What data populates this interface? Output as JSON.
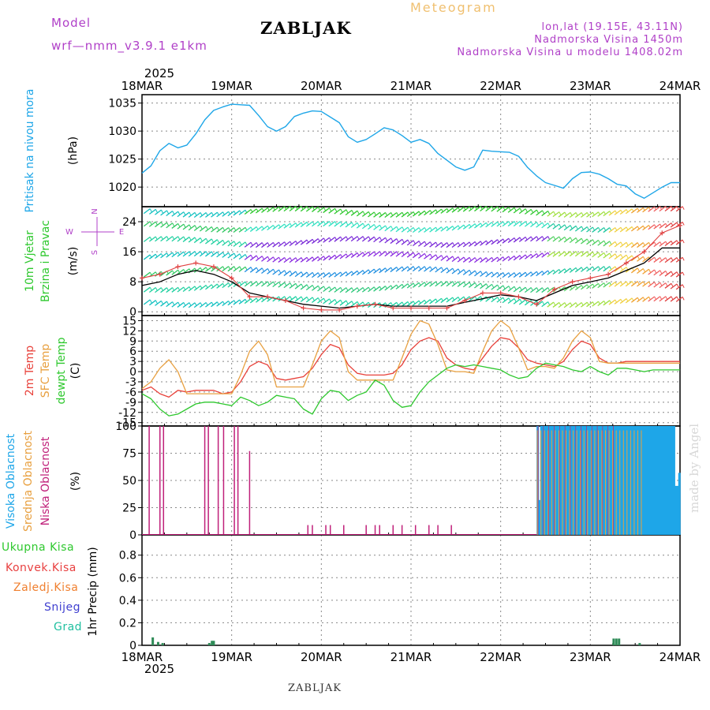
{
  "header": {
    "model_label": "Model",
    "model_name": "wrf—nmm_v3.9.1 e1km",
    "station": "ZABLJAK",
    "title": "Meteogram",
    "lonlat": "lon,lat (19.15E, 43.11N)",
    "elevation": "Nadmorska Visina 1450m",
    "model_elevation": "Nadmorska Visina u modelu 1408.02m",
    "footer_station": "ZABLJAK",
    "credit": "made by Angel"
  },
  "time_axis": {
    "year_top": "2025",
    "year_bottom": "2025",
    "ticks": [
      "18MAR",
      "19MAR",
      "20MAR",
      "21MAR",
      "22MAR",
      "23MAR",
      "24MAR"
    ]
  },
  "legend": {
    "wind_compass": "N\n<-|->\nW          E\n<-|->\nS"
  },
  "colors": {
    "pressure": "#1ea6e8",
    "temp2m": "#e8413a",
    "sfc_temp": "#e8a040",
    "dewpt": "#2ec82e",
    "high_cloud": "#1ea6e8",
    "mid_cloud": "#e8a040",
    "low_cloud": "#c0207a",
    "precip_total": "#2e8b57",
    "title_orange": "#f0c070",
    "purple": "#b040c8"
  },
  "chart_data": [
    {
      "type": "line",
      "id": "pressure",
      "ylabel_name": "Pritisak na nivou mora",
      "ylabel_unit": "(hPa)",
      "yticks": [
        1020,
        1025,
        1030,
        1035
      ],
      "ylim": [
        1016.5,
        1036.5
      ],
      "x_days": [
        0,
        0.1,
        0.2,
        0.3,
        0.4,
        0.5,
        0.6,
        0.7,
        0.8,
        0.9,
        1.0,
        1.1,
        1.2,
        1.3,
        1.4,
        1.5,
        1.6,
        1.7,
        1.8,
        1.9,
        2.0,
        2.1,
        2.2,
        2.3,
        2.4,
        2.5,
        2.6,
        2.7,
        2.8,
        2.9,
        3.0,
        3.1,
        3.2,
        3.3,
        3.4,
        3.5,
        3.6,
        3.7,
        3.8,
        3.9,
        4.0,
        4.1,
        4.2,
        4.3,
        4.4,
        4.5,
        4.6,
        4.7,
        4.8,
        4.9,
        5.0,
        5.1,
        5.2,
        5.3,
        5.4,
        5.5,
        5.6,
        5.7,
        5.8,
        5.9,
        6.0
      ],
      "values": [
        1022.5,
        1023.8,
        1026.5,
        1027.8,
        1027.0,
        1027.5,
        1029.5,
        1032.0,
        1033.7,
        1034.3,
        1034.8,
        1034.7,
        1034.6,
        1032.8,
        1030.8,
        1030.0,
        1030.8,
        1032.6,
        1033.2,
        1033.6,
        1033.5,
        1032.5,
        1031.5,
        1029.0,
        1028.0,
        1028.5,
        1029.5,
        1030.6,
        1030.2,
        1029.2,
        1028.0,
        1028.5,
        1027.8,
        1026.0,
        1024.8,
        1023.6,
        1023.0,
        1023.6,
        1026.6,
        1026.4,
        1026.3,
        1026.2,
        1025.5,
        1023.5,
        1022.0,
        1020.8,
        1020.3,
        1019.8,
        1021.5,
        1022.6,
        1022.7,
        1022.3,
        1021.5,
        1020.5,
        1020.2,
        1018.8,
        1018.0,
        1019.0,
        1020.0,
        1020.8,
        1020.8
      ]
    },
    {
      "type": "line",
      "id": "wind",
      "ylabel_name": "10m Vjetar Brzina i Pravac",
      "ylabel_unit": "(m/s)",
      "yticks": [
        0,
        8,
        16,
        24
      ],
      "ylim": [
        -1,
        28
      ],
      "series": [
        {
          "name": "speed",
          "x_days": [
            0,
            0.2,
            0.4,
            0.6,
            0.8,
            1.0,
            1.2,
            1.4,
            1.6,
            1.8,
            2.0,
            2.2,
            2.4,
            2.6,
            2.8,
            3.0,
            3.2,
            3.4,
            3.6,
            3.8,
            4.0,
            4.2,
            4.4,
            4.6,
            4.8,
            5.0,
            5.2,
            5.4,
            5.6,
            5.8,
            6.0
          ],
          "values": [
            7,
            8,
            10,
            11,
            10,
            8,
            5,
            4,
            3,
            2,
            1.5,
            1,
            1.5,
            2,
            1.5,
            1.5,
            1.5,
            1.5,
            2.5,
            3.5,
            4.5,
            4,
            3,
            5,
            7,
            8,
            9,
            11,
            13,
            17,
            17
          ]
        },
        {
          "name": "gust",
          "x_days": [
            0,
            0.2,
            0.4,
            0.6,
            0.8,
            1.0,
            1.2,
            1.4,
            1.6,
            1.8,
            2.0,
            2.2,
            2.4,
            2.6,
            2.8,
            3.0,
            3.2,
            3.4,
            3.6,
            3.8,
            4.0,
            4.2,
            4.4,
            4.6,
            4.8,
            5.0,
            5.2,
            5.4,
            5.6,
            5.8,
            6.0
          ],
          "values": [
            9,
            10,
            12,
            13,
            12,
            9,
            4,
            4,
            3,
            1,
            0.5,
            0.5,
            1.5,
            2,
            1,
            1,
            1,
            1,
            3,
            5,
            5,
            4,
            2,
            6,
            8,
            9,
            10,
            13,
            16,
            21,
            23
          ]
        }
      ]
    },
    {
      "type": "line",
      "id": "temperature",
      "ylabel_name_a": "2m Temp",
      "ylabel_name_b": "SFC Temp",
      "ylabel_name_c": "dewpt Temp",
      "ylabel_unit": "(C)",
      "yticks": [
        -15,
        -12,
        -9,
        -6,
        -3,
        0,
        3,
        6,
        9,
        12,
        15
      ],
      "ylim": [
        -16,
        16.5
      ],
      "x_days": [
        0,
        0.1,
        0.2,
        0.3,
        0.4,
        0.5,
        0.6,
        0.7,
        0.8,
        0.9,
        1.0,
        1.1,
        1.2,
        1.3,
        1.4,
        1.5,
        1.6,
        1.7,
        1.8,
        1.9,
        2.0,
        2.1,
        2.2,
        2.3,
        2.4,
        2.5,
        2.6,
        2.7,
        2.8,
        2.9,
        3.0,
        3.1,
        3.2,
        3.3,
        3.4,
        3.5,
        3.6,
        3.7,
        3.8,
        3.9,
        4.0,
        4.1,
        4.2,
        4.3,
        4.4,
        4.5,
        4.6,
        4.7,
        4.8,
        4.9,
        5.0,
        5.1,
        5.2,
        5.3,
        5.4,
        5.5,
        5.6,
        5.7,
        5.8,
        5.9,
        6.0
      ],
      "series": [
        {
          "name": "2m Temp",
          "values": [
            -5.5,
            -4.5,
            -6.5,
            -7.5,
            -5.5,
            -6.0,
            -5.5,
            -5.5,
            -5.5,
            -6.5,
            -6.0,
            -3.0,
            1.5,
            3.0,
            2.0,
            -2.0,
            -2.5,
            -2.0,
            -1.5,
            1.0,
            5.0,
            8.0,
            7.0,
            2.0,
            -0.5,
            -1.0,
            -1.0,
            -1.0,
            -0.5,
            2.0,
            6.5,
            9.0,
            10.0,
            9.0,
            4.0,
            2.0,
            1.0,
            0.5,
            4.0,
            7.5,
            10.0,
            9.5,
            7.0,
            3.5,
            2.5,
            2.0,
            1.5,
            3.0,
            6.5,
            9.0,
            8.0,
            4.0,
            2.5,
            2.5,
            3.0,
            3.0,
            3.0,
            3.0,
            3.0,
            3.0,
            3.0
          ]
        },
        {
          "name": "SFC Temp",
          "values": [
            -5.0,
            -3.0,
            1.0,
            3.5,
            0.0,
            -6.5,
            -6.5,
            -6.5,
            -6.5,
            -6.5,
            -6.5,
            -1.0,
            6.0,
            9.0,
            5.0,
            -4.5,
            -4.5,
            -4.5,
            -4.5,
            2.0,
            9.0,
            12.0,
            10.0,
            0.0,
            -2.5,
            -2.5,
            -2.5,
            -2.5,
            -2.5,
            4.0,
            11.0,
            15.0,
            14.0,
            8.0,
            0.5,
            0.0,
            0.0,
            -0.5,
            6.0,
            12.0,
            15.0,
            13.0,
            7.0,
            0.5,
            1.5,
            1.5,
            1.0,
            4.0,
            9.0,
            12.0,
            10.0,
            3.0,
            2.5,
            2.5,
            2.5,
            2.5,
            2.5,
            2.5,
            2.5,
            2.5,
            2.5
          ]
        },
        {
          "name": "dewpt Temp",
          "values": [
            -6.5,
            -8.0,
            -11.0,
            -13.0,
            -12.5,
            -11.0,
            -9.5,
            -9.0,
            -9.0,
            -9.5,
            -10.0,
            -7.5,
            -8.5,
            -10.0,
            -9.0,
            -7.0,
            -7.5,
            -8.0,
            -11.0,
            -12.5,
            -8.0,
            -5.5,
            -6.0,
            -8.5,
            -7.0,
            -6.0,
            -2.5,
            -4.0,
            -8.5,
            -10.5,
            -10.0,
            -6.0,
            -3.0,
            -1.0,
            1.0,
            2.0,
            1.5,
            2.0,
            1.5,
            1.0,
            0.5,
            -1.0,
            -2.0,
            -1.5,
            1.0,
            2.5,
            2.0,
            1.5,
            0.5,
            0.0,
            1.5,
            0.0,
            -1.0,
            1.0,
            1.0,
            0.5,
            0.0,
            0.5,
            0.5,
            0.5,
            0.5
          ]
        }
      ]
    },
    {
      "type": "bar",
      "id": "cloud",
      "ylabel_name_a": "Visoka Oblacnost",
      "ylabel_name_b": "Srednja Oblacnost",
      "ylabel_name_c": "Niska Oblacnost",
      "ylabel_unit": "(%)",
      "yticks": [
        0,
        25,
        50,
        75,
        100
      ],
      "ylim": [
        0,
        100
      ],
      "low_bars": [
        {
          "x": 0.08,
          "v": 100
        },
        {
          "x": 0.2,
          "v": 100
        },
        {
          "x": 0.24,
          "v": 100
        },
        {
          "x": 0.7,
          "v": 100
        },
        {
          "x": 0.74,
          "v": 100
        },
        {
          "x": 0.85,
          "v": 100
        },
        {
          "x": 0.91,
          "v": 100
        },
        {
          "x": 1.03,
          "v": 100
        },
        {
          "x": 1.07,
          "v": 100
        },
        {
          "x": 1.2,
          "v": 77
        },
        {
          "x": 1.85,
          "v": 9
        },
        {
          "x": 1.9,
          "v": 9
        },
        {
          "x": 2.05,
          "v": 9
        },
        {
          "x": 2.1,
          "v": 9
        },
        {
          "x": 2.25,
          "v": 9
        },
        {
          "x": 2.5,
          "v": 9
        },
        {
          "x": 2.6,
          "v": 9
        },
        {
          "x": 2.65,
          "v": 9
        },
        {
          "x": 2.8,
          "v": 9
        },
        {
          "x": 2.9,
          "v": 9
        },
        {
          "x": 3.05,
          "v": 9
        },
        {
          "x": 3.2,
          "v": 9
        },
        {
          "x": 3.3,
          "v": 9
        },
        {
          "x": 3.45,
          "v": 9
        }
      ],
      "high_from_day": 4.4,
      "high_to_day": 6.0,
      "high_low_values": [
        {
          "x": 4.42,
          "v": 32
        },
        {
          "x": 5.95,
          "v": 45
        },
        {
          "x": 5.98,
          "v": 57
        }
      ]
    },
    {
      "type": "bar",
      "id": "precip",
      "ylabel_name": "1hr Precip (mm)",
      "legend_entries": [
        "Ukupna Kisa",
        "Konvek.Kisa",
        "Zaledj.Kisa",
        "Snijeg",
        "Grad"
      ],
      "yticks": [
        0,
        0.2,
        0.4,
        0.6,
        0.8
      ],
      "ylim": [
        0,
        0.98
      ],
      "bars": [
        {
          "x": 0.12,
          "v": 0.07
        },
        {
          "x": 0.18,
          "v": 0.03
        },
        {
          "x": 0.23,
          "v": 0.02
        },
        {
          "x": 0.75,
          "v": 0.02
        },
        {
          "x": 0.78,
          "v": 0.04
        },
        {
          "x": 0.8,
          "v": 0.04
        },
        {
          "x": 5.26,
          "v": 0.06
        },
        {
          "x": 5.29,
          "v": 0.06
        },
        {
          "x": 5.32,
          "v": 0.06
        },
        {
          "x": 5.55,
          "v": 0.02
        }
      ]
    }
  ]
}
